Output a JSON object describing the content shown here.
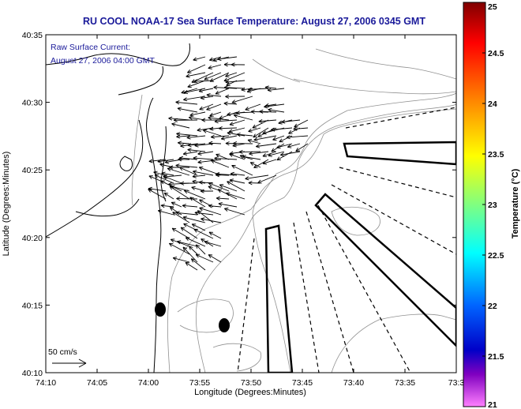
{
  "chart_data": {
    "type": "map",
    "title": "RU COOL  NOAA-17  Sea Surface Temperature:  August 27, 2006 0345 GMT",
    "annotation_lines": [
      "Raw Surface Current:",
      "August 27, 2006 04:00 GMT"
    ],
    "xlabel": "Longitude (Degrees:Minutes)",
    "ylabel": "Latitude (Degrees:Minutes)",
    "x_ticks": [
      "74:10",
      "74:05",
      "74:00",
      "73:55",
      "73:50",
      "73:45",
      "73:40",
      "73:35",
      "73:3"
    ],
    "y_ticks": [
      "40:35",
      "40:30",
      "40:25",
      "40:20",
      "40:15",
      "40:10"
    ],
    "xlim_minutes_west_of_74": [
      -10,
      30
    ],
    "ylim_minutes_north_of_40": [
      10,
      35
    ],
    "colorbar": {
      "label": "Temperature (°C)",
      "range": [
        21,
        25
      ],
      "tick_labels": [
        "25",
        "24.5",
        "24",
        "23.5",
        "23",
        "22.5",
        "22",
        "21.5",
        "21"
      ],
      "colormap": "jet with magenta low end"
    },
    "scale_label": "50 cm/s",
    "colors": {
      "title": "#1a1a9a",
      "annotation": "#1a1a9a",
      "coastline": "#000000",
      "bathymetry": "#909090",
      "vectors": "#000000"
    }
  }
}
